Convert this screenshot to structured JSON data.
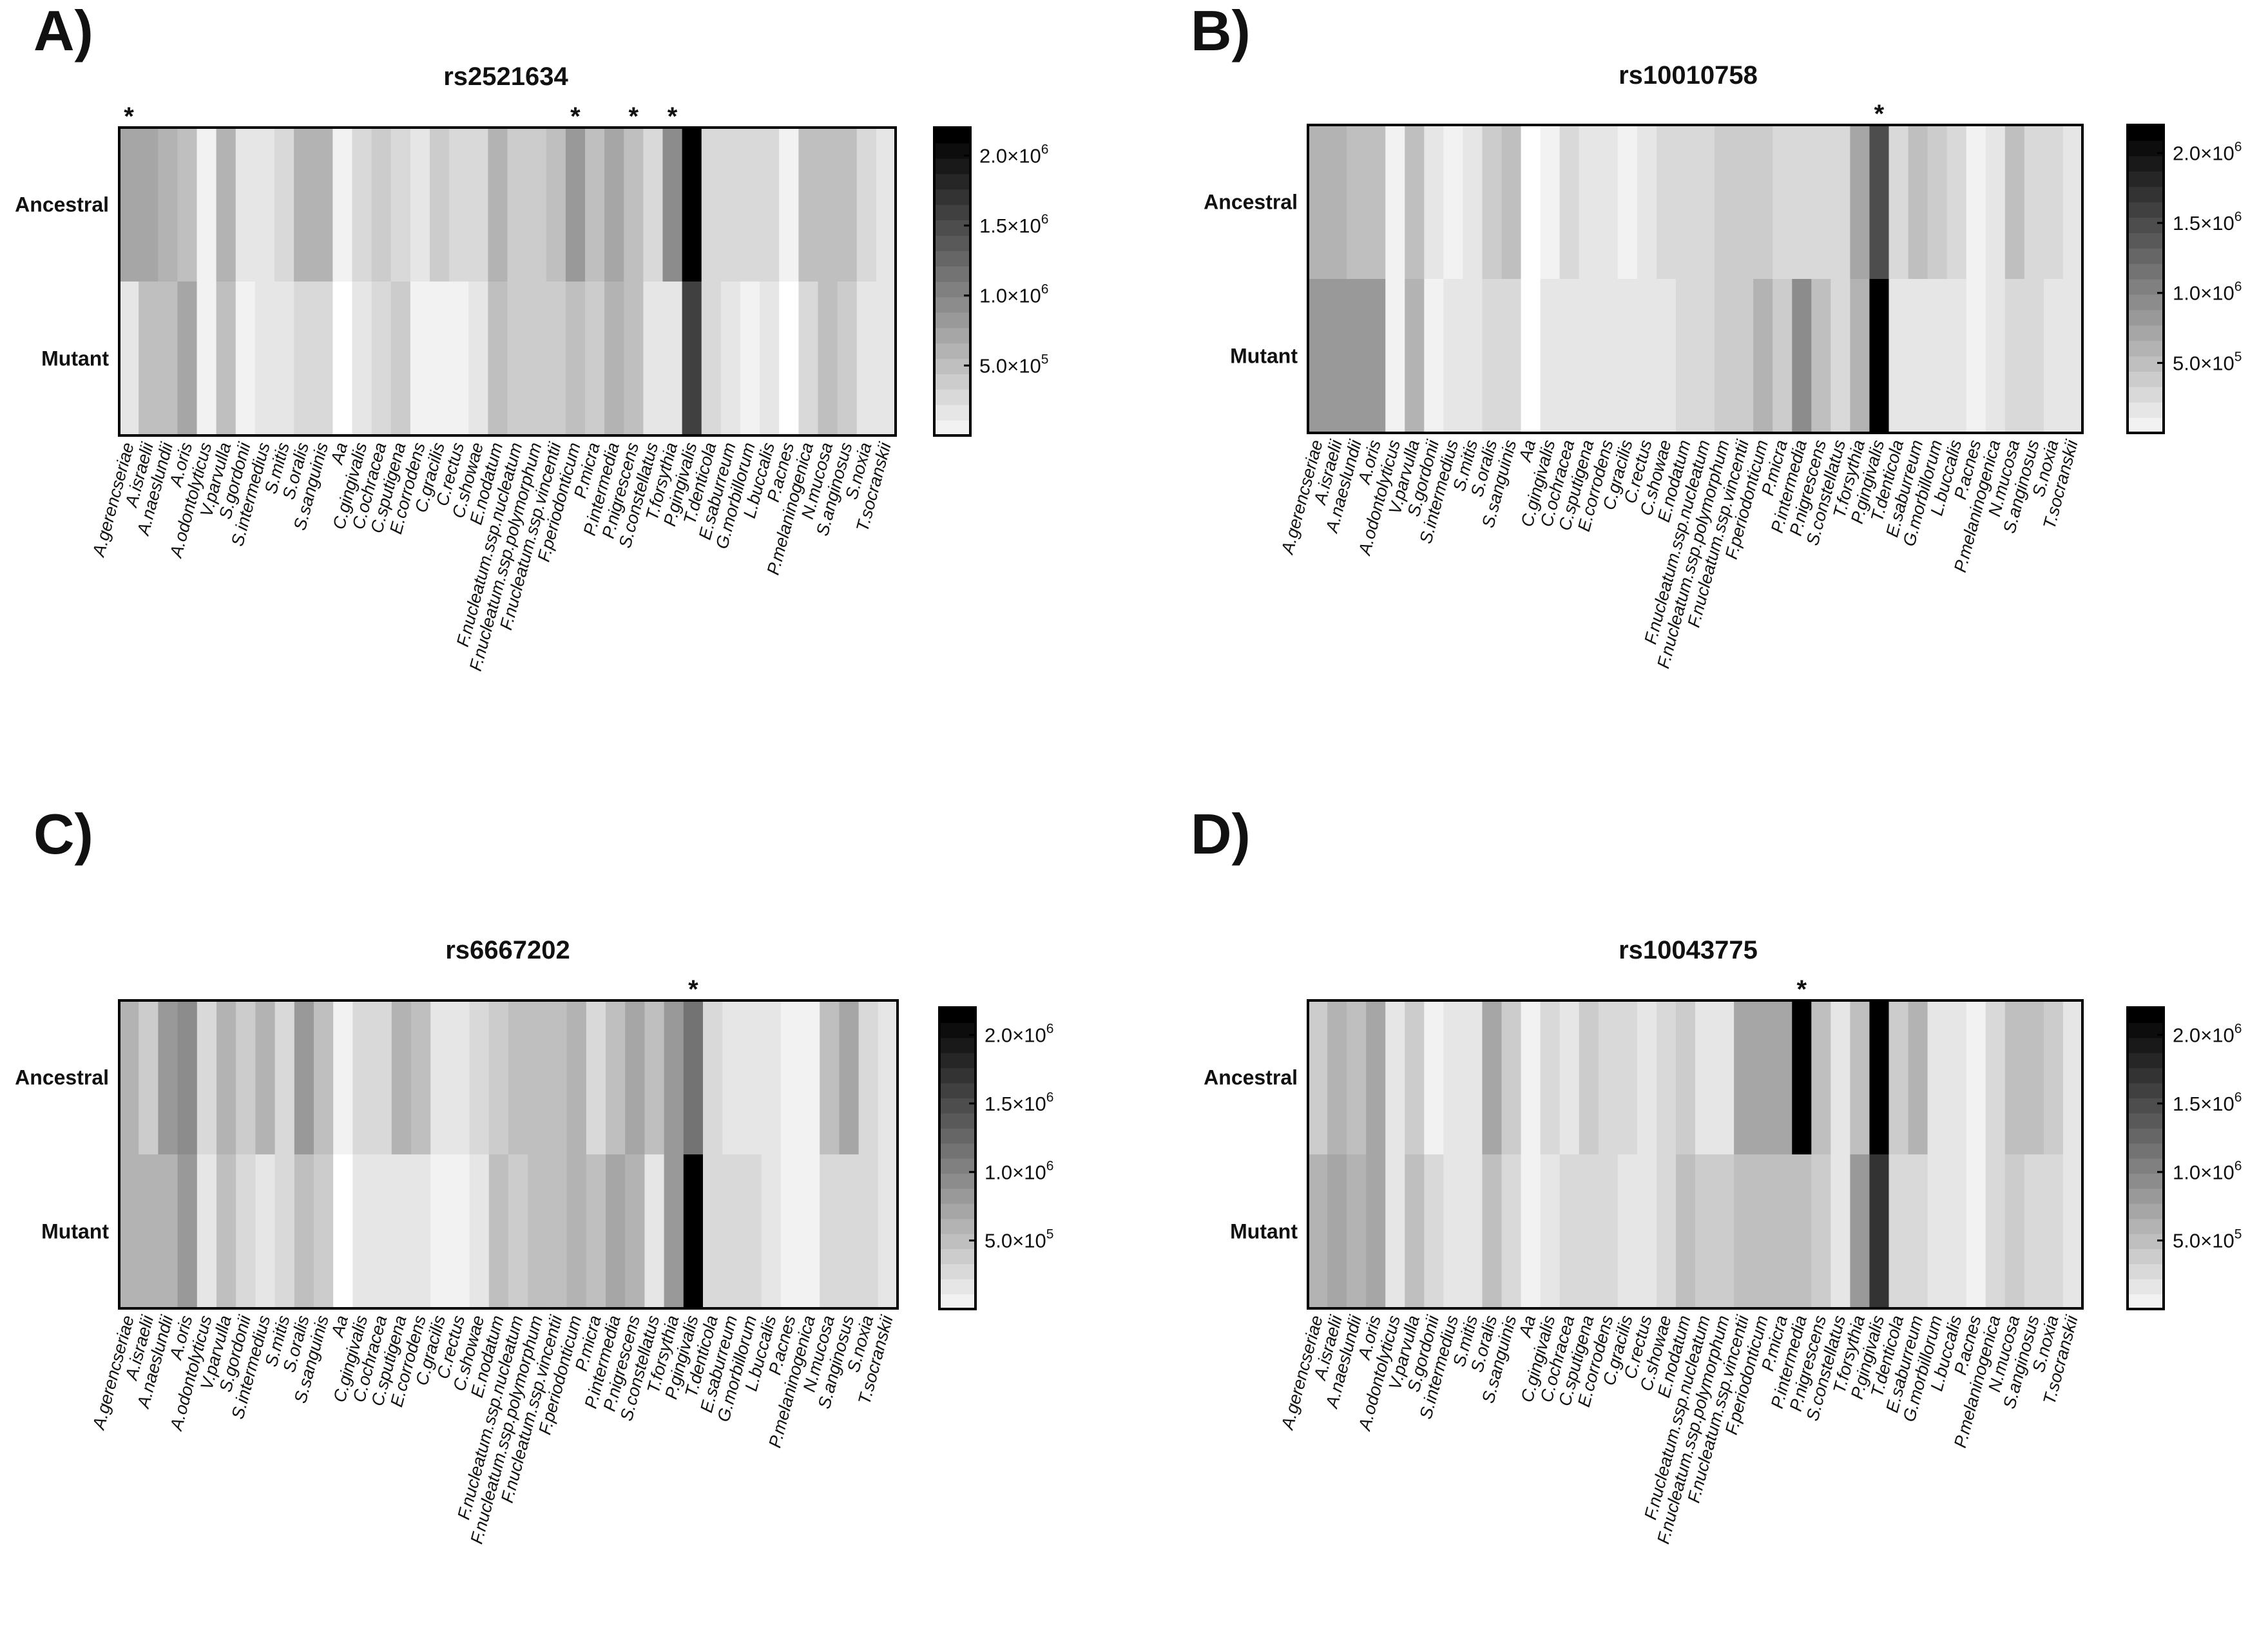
{
  "figure": {
    "species": [
      "A.gerencseriae",
      "A.israelii",
      "A.naeslundii",
      "A.oris",
      "A.odontolyticus",
      "V.parvulla",
      "S.gordonii",
      "S.intermedius",
      "S.mitis",
      "S.oralis",
      "S.sanguinis",
      "Aa",
      "C.gingivalis",
      "C.ochracea",
      "C.sputigena",
      "E.corrodens",
      "C.gracilis",
      "C.rectus",
      "C.showae",
      "E.nodatum",
      "F.nucleatum.ssp.nucleatum",
      "F.nucleatum.ssp.polymorphum",
      "F.nucleatum.ssp.vincentii",
      "F.periodonticum",
      "P.micra",
      "P.intermedia",
      "P.nigrescens",
      "S.constellatus",
      "T.forsythia",
      "P.gingivalis",
      "T.denticola",
      "E.saburreum",
      "G.morbillorum",
      "L.buccalis",
      "P.acnes",
      "P.melaninogenica",
      "N.mucosa",
      "S.anginosus",
      "S.noxia",
      "T.socranskii"
    ],
    "row_labels": [
      "Ancestral",
      "Mutant"
    ],
    "colorbar": {
      "min": 0,
      "max": 2200000,
      "levels": 20,
      "ticks": [
        {
          "value": 500000,
          "mantissa": "5.0×10",
          "exp": "5"
        },
        {
          "value": 1000000,
          "mantissa": "1.0×10",
          "exp": "6"
        },
        {
          "value": 1500000,
          "mantissa": "1.5×10",
          "exp": "6"
        },
        {
          "value": 2000000,
          "mantissa": "2.0×10",
          "exp": "6"
        }
      ]
    },
    "colors": {
      "low": "#ffffff",
      "high": "#000000",
      "border": "#000000"
    }
  },
  "chart_data": [
    {
      "panel": "A)",
      "type": "heatmap",
      "title": "rs2521634",
      "significant": [
        "A.gerencseriae",
        "F.periodonticum",
        "P.nigrescens",
        "T.forsythia"
      ],
      "ancestral": [
        800000,
        750000,
        650000,
        600000,
        80000,
        700000,
        250000,
        250000,
        300000,
        700000,
        700000,
        150000,
        300000,
        400000,
        350000,
        250000,
        400000,
        300000,
        300000,
        650000,
        400000,
        400000,
        600000,
        900000,
        550000,
        750000,
        600000,
        300000,
        1000000,
        2150000,
        350000,
        300000,
        350000,
        350000,
        120000,
        500000,
        600000,
        500000,
        350000,
        250000
      ],
      "mutant": [
        250000,
        500000,
        600000,
        800000,
        80000,
        600000,
        100000,
        200000,
        250000,
        300000,
        300000,
        30000,
        250000,
        300000,
        450000,
        150000,
        150000,
        150000,
        250000,
        500000,
        400000,
        400000,
        450000,
        600000,
        400000,
        650000,
        500000,
        250000,
        250000,
        1700000,
        350000,
        250000,
        150000,
        250000,
        50000,
        300000,
        500000,
        450000,
        250000,
        250000
      ]
    },
    {
      "panel": "B)",
      "type": "heatmap",
      "title": "rs10010758",
      "significant": [
        "P.gingivalis"
      ],
      "ancestral": [
        700000,
        700000,
        600000,
        550000,
        150000,
        500000,
        250000,
        150000,
        250000,
        400000,
        500000,
        50000,
        150000,
        300000,
        250000,
        200000,
        150000,
        200000,
        350000,
        300000,
        300000,
        400000,
        400000,
        450000,
        300000,
        350000,
        350000,
        350000,
        800000,
        1500000,
        350000,
        500000,
        450000,
        350000,
        100000,
        250000,
        550000,
        300000,
        300000,
        200000
      ],
      "mutant": [
        850000,
        850000,
        900000,
        900000,
        150000,
        650000,
        100000,
        250000,
        250000,
        350000,
        350000,
        30000,
        250000,
        250000,
        250000,
        200000,
        200000,
        200000,
        250000,
        300000,
        300000,
        400000,
        450000,
        650000,
        450000,
        950000,
        550000,
        300000,
        650000,
        2200000,
        250000,
        250000,
        250000,
        200000,
        100000,
        200000,
        350000,
        300000,
        250000,
        250000
      ]
    },
    {
      "panel": "C)",
      "type": "heatmap",
      "title": "rs6667202",
      "significant": [
        "P.gingivalis"
      ],
      "ancestral": [
        700000,
        450000,
        900000,
        950000,
        300000,
        700000,
        450000,
        650000,
        350000,
        900000,
        600000,
        150000,
        300000,
        350000,
        650000,
        500000,
        200000,
        250000,
        300000,
        400000,
        550000,
        600000,
        600000,
        700000,
        350000,
        550000,
        750000,
        500000,
        850000,
        1200000,
        300000,
        250000,
        250000,
        250000,
        100000,
        150000,
        500000,
        750000,
        300000,
        200000
      ],
      "mutant": [
        700000,
        700000,
        700000,
        900000,
        250000,
        500000,
        300000,
        250000,
        300000,
        500000,
        450000,
        50000,
        200000,
        200000,
        250000,
        200000,
        150000,
        150000,
        250000,
        600000,
        400000,
        500000,
        500000,
        700000,
        600000,
        800000,
        700000,
        200000,
        900000,
        2200000,
        350000,
        350000,
        300000,
        200000,
        150000,
        150000,
        350000,
        300000,
        300000,
        250000
      ]
    },
    {
      "panel": "D)",
      "type": "heatmap",
      "title": "rs10043775",
      "significant": [
        "P.intermedia"
      ],
      "ancestral": [
        400000,
        650000,
        550000,
        800000,
        250000,
        400000,
        80000,
        200000,
        250000,
        750000,
        400000,
        100000,
        300000,
        250000,
        450000,
        300000,
        300000,
        200000,
        350000,
        400000,
        200000,
        200000,
        800000,
        800000,
        800000,
        2150000,
        500000,
        200000,
        500000,
        2200000,
        400000,
        650000,
        200000,
        200000,
        100000,
        300000,
        550000,
        500000,
        400000,
        250000
      ],
      "mutant": [
        700000,
        750000,
        700000,
        750000,
        200000,
        550000,
        300000,
        200000,
        200000,
        500000,
        350000,
        100000,
        200000,
        300000,
        300000,
        300000,
        200000,
        200000,
        350000,
        550000,
        400000,
        400000,
        500000,
        550000,
        500000,
        500000,
        450000,
        200000,
        900000,
        1800000,
        350000,
        300000,
        200000,
        200000,
        150000,
        350000,
        400000,
        350000,
        300000,
        250000
      ]
    }
  ]
}
